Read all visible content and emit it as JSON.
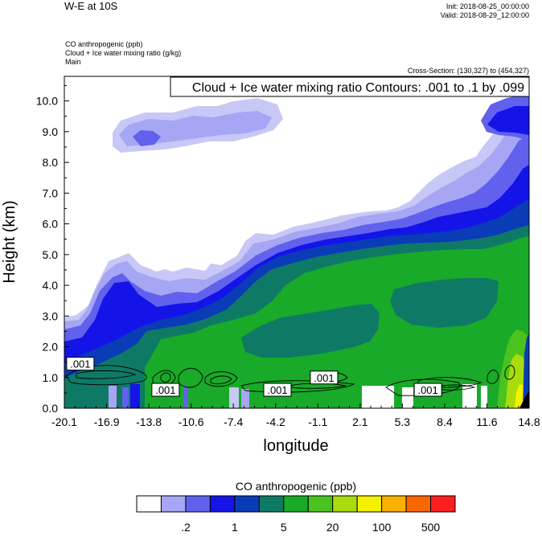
{
  "header": {
    "title": "W-E at 10S",
    "init": "Init: 2018-08-25_00:00:00",
    "valid": "Valid: 2018-08-29_12:00:00",
    "field_1": "CO anthropogenic   (ppb)",
    "field_2": "Cloud + Ice water mixing ratio   (g/kg)",
    "domain": "Main",
    "cross_section": "Cross-Section: (130,327) to (454,327)"
  },
  "chart_data": {
    "type": "heatmap",
    "title": "W-E at 10S",
    "contour_box": "Cloud + Ice water mixing ratio Contours: .001 to .1 by .099",
    "xlabel": "longitude",
    "ylabel": "Height (km)",
    "xlim": [
      -20.1,
      14.8
    ],
    "ylim": [
      0.0,
      10.8
    ],
    "x_ticks": [
      "-20.1",
      "-16.9",
      "-13.8",
      "-10.6",
      "-7.4",
      "-4.2",
      "-1.1",
      "2.1",
      "5.3",
      "8.4",
      "11.6",
      "14.8"
    ],
    "y_ticks": [
      "0.0",
      "1.0",
      "2.0",
      "3.0",
      "4.0",
      "5.0",
      "6.0",
      "7.0",
      "8.0",
      "9.0",
      "10.0"
    ],
    "contour_labels": [
      {
        "text": ".001",
        "lon": -18.9,
        "height": 1.45
      },
      {
        "text": ".001",
        "lon": -12.5,
        "height": 0.6
      },
      {
        "text": ".001",
        "lon": -4.1,
        "height": 0.6
      },
      {
        "text": ".001",
        "lon": -0.6,
        "height": 1.0
      },
      {
        "text": ".001",
        "lon": 7.2,
        "height": 0.6
      }
    ],
    "colorbar": {
      "title": "CO anthropogenic  (ppb)",
      "colors": [
        "#ffffff",
        "#a6a6f5",
        "#6161ee",
        "#1414e8",
        "#0a3cb8",
        "#0e7a66",
        "#18aa28",
        "#4cc21e",
        "#a8dc0c",
        "#f2f200",
        "#f9b100",
        "#fc6600",
        "#ff1e1e"
      ],
      "tick_labels": [
        ".2",
        "1",
        "5",
        "20",
        "100",
        "500"
      ]
    }
  }
}
